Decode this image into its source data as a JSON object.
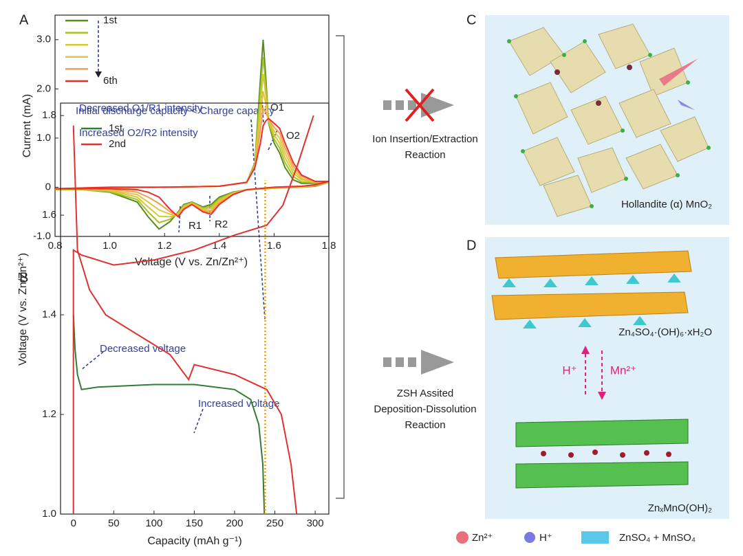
{
  "chart_data": [
    {
      "type": "line",
      "panel_label": "A",
      "x_label": "Voltage (V vs. Zn/Zn²⁺)",
      "y_label": "Current (mA)",
      "xlim": [
        0.8,
        1.8
      ],
      "xticks": [
        0.8,
        {
          "value": 1,
          "label": "1.0"
        },
        1.2,
        1.4,
        1.6,
        1.8
      ],
      "ylim": [
        -1,
        3.5
      ],
      "yticks": [
        {
          "value": -1,
          "label": "-1.0"
        },
        0,
        {
          "value": 1,
          "label": "1.0"
        },
        {
          "value": 2,
          "label": "2.0"
        },
        {
          "value": 3,
          "label": "3.0"
        }
      ],
      "x": [
        0.8,
        1.0,
        1.2,
        1.4,
        1.5,
        1.53,
        1.55,
        1.56,
        1.57,
        1.58,
        1.6,
        1.62,
        1.64,
        1.67,
        1.7,
        1.75,
        1.8,
        1.75,
        1.7,
        1.6,
        1.5,
        1.45,
        1.4,
        1.37,
        1.34,
        1.3,
        1.27,
        1.25,
        1.22,
        1.18,
        1.14,
        1.1,
        1.0,
        0.9,
        0.8
      ],
      "series": [
        {
          "name": "1st",
          "color": "#5a8a1e",
          "values": [
            -0.05,
            -0.02,
            0,
            0.02,
            0.1,
            0.5,
            2.2,
            3.0,
            2.2,
            1.3,
            0.9,
            0.7,
            0.4,
            0.15,
            0.08,
            0.08,
            0.1,
            0.02,
            0,
            -0.02,
            -0.05,
            -0.1,
            -0.2,
            -0.35,
            -0.4,
            -0.3,
            -0.35,
            -0.5,
            -0.7,
            -0.85,
            -0.6,
            -0.3,
            -0.1,
            -0.05,
            -0.05
          ]
        },
        {
          "color": "#a6c22a",
          "values": [
            -0.05,
            -0.02,
            0,
            0.02,
            0.1,
            0.48,
            1.94,
            2.65,
            2.03,
            1.32,
            0.98,
            0.8,
            0.5,
            0.22,
            0.11,
            0.09,
            0.1,
            0.03,
            0,
            -0.02,
            -0.05,
            -0.11,
            -0.23,
            -0.39,
            -0.42,
            -0.31,
            -0.37,
            -0.52,
            -0.65,
            -0.72,
            -0.5,
            -0.25,
            -0.09,
            -0.05,
            -0.05
          ]
        },
        {
          "color": "#d4c92e",
          "values": [
            -0.04,
            -0.01,
            0,
            0.02,
            0.1,
            0.46,
            1.68,
            2.3,
            1.86,
            1.34,
            1.06,
            0.9,
            0.6,
            0.29,
            0.15,
            0.1,
            0.11,
            0.03,
            0.01,
            -0.01,
            -0.05,
            -0.12,
            -0.26,
            -0.43,
            -0.44,
            -0.32,
            -0.39,
            -0.54,
            -0.6,
            -0.59,
            -0.4,
            -0.2,
            -0.07,
            -0.04,
            -0.04
          ]
        },
        {
          "color": "#e8c040",
          "values": [
            -0.04,
            -0.01,
            0,
            0.02,
            0.1,
            0.44,
            1.42,
            1.95,
            1.69,
            1.36,
            1.14,
            1.0,
            0.7,
            0.36,
            0.18,
            0.1,
            0.11,
            0.04,
            0.01,
            -0.01,
            -0.05,
            -0.13,
            -0.29,
            -0.47,
            -0.46,
            -0.33,
            -0.41,
            -0.56,
            -0.55,
            -0.46,
            -0.3,
            -0.15,
            -0.06,
            -0.04,
            -0.04
          ]
        },
        {
          "color": "#f0a050",
          "values": [
            -0.03,
            0,
            0,
            0.02,
            0.1,
            0.42,
            1.16,
            1.6,
            1.52,
            1.38,
            1.22,
            1.1,
            0.8,
            0.43,
            0.22,
            0.11,
            0.12,
            0.04,
            0.02,
            0,
            -0.05,
            -0.14,
            -0.32,
            -0.51,
            -0.48,
            -0.34,
            -0.43,
            -0.58,
            -0.5,
            -0.33,
            -0.2,
            -0.1,
            -0.04,
            -0.03,
            -0.03
          ]
        },
        {
          "name": "6th",
          "color": "#e8302a",
          "values": [
            -0.03,
            0,
            0,
            0.02,
            0.1,
            0.4,
            0.9,
            1.25,
            1.35,
            1.4,
            1.3,
            1.2,
            0.9,
            0.5,
            0.25,
            0.12,
            0.12,
            0.05,
            0.02,
            0,
            -0.05,
            -0.15,
            -0.35,
            -0.55,
            -0.5,
            -0.35,
            -0.45,
            -0.6,
            -0.45,
            -0.2,
            -0.1,
            -0.05,
            -0.03,
            -0.03,
            -0.03
          ]
        }
      ],
      "annotations": [
        "Decreased O1/R1 intensity",
        "Increased O2/R2 intensity",
        "O1",
        "O2",
        "R1",
        "R2"
      ]
    },
    {
      "type": "line",
      "panel_label": "B",
      "x_label": "Capacity (mAh g⁻¹)",
      "y_label": "Voltage (V vs. Zn/Zn²⁺)",
      "xlim": [
        -16,
        317
      ],
      "xticks": [
        0,
        50,
        100,
        150,
        200,
        250,
        300
      ],
      "ylim": [
        1,
        1.825
      ],
      "yticks": [
        {
          "value": 1,
          "label": "1.0"
        },
        1.2,
        1.4,
        1.6,
        1.8
      ],
      "series": [
        {
          "name": "1st",
          "color": "#2e7d32",
          "x": [
            0,
            2,
            5,
            10,
            30,
            100,
            150,
            200,
            220,
            230,
            235,
            237
          ],
          "values": [
            1.4,
            1.33,
            1.28,
            1.25,
            1.255,
            1.26,
            1.26,
            1.25,
            1.23,
            1.18,
            1.1,
            1.0
          ]
        },
        {
          "name": "2nd",
          "color": "#e03030",
          "x": [
            0,
            5,
            20,
            40,
            80,
            120,
            143,
            150,
            200,
            240,
            258,
            270,
            277,
            null,
            0,
            0,
            10,
            50,
            100,
            150,
            200,
            240,
            260,
            278,
            298
          ],
          "values": [
            1.78,
            1.53,
            1.45,
            1.4,
            1.36,
            1.32,
            1.27,
            1.3,
            1.28,
            1.25,
            1.2,
            1.1,
            1.0,
            null,
            1.0,
            1.53,
            1.52,
            1.5,
            1.51,
            1.53,
            1.56,
            1.58,
            1.62,
            1.7,
            1.8
          ]
        },
        {
          "color": "#f0a000",
          "dash": true,
          "x": [
            238,
            238
          ],
          "values": [
            1.0,
            1.67
          ]
        }
      ],
      "annotations": [
        "Initial discharge capacity < Charge capacity",
        "Decreased voltage",
        "Increased voltage"
      ]
    }
  ],
  "diagram": {
    "top_arrow": [
      "Ion Insertion/Extraction",
      "Reaction"
    ],
    "bottom_arrow": [
      "ZSH Assited",
      "Deposition-Dissolution",
      "Reaction"
    ],
    "panel_c": {
      "label": "C",
      "caption": "Hollandite (α) MnO₂"
    },
    "panel_d": {
      "label": "D",
      "top_caption": "Zn₄SO₄·(OH)₆·xH₂O",
      "bottom_caption": "ZnₓMnO(OH)₂",
      "up_label": "H⁺",
      "down_label": "Mn²⁺"
    },
    "legend": [
      "Zn²⁺",
      "H⁺",
      "ZnSO₄ + MnSO₄"
    ]
  }
}
